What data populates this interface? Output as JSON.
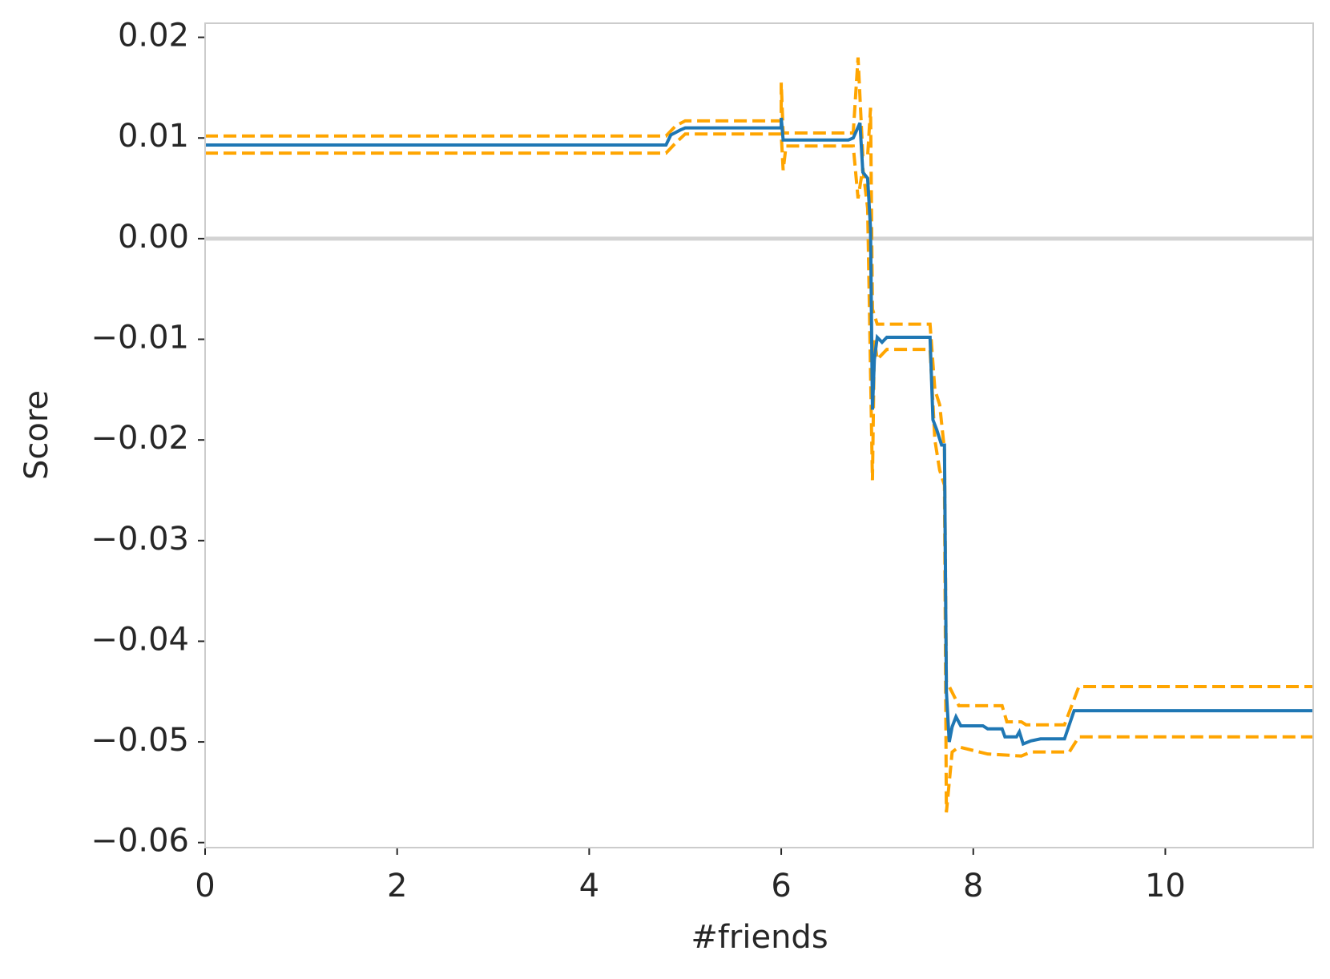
{
  "chart_data": {
    "type": "line",
    "x_label": "#friends",
    "y_label": "Score",
    "xlim": [
      0,
      11.54
    ],
    "ylim": [
      -0.0605,
      0.0214
    ],
    "xticks": [
      0,
      2,
      4,
      6,
      8,
      10
    ],
    "yticks": [
      {
        "value": -0.06,
        "label": "−0.06"
      },
      {
        "value": -0.05,
        "label": "−0.05"
      },
      {
        "value": -0.04,
        "label": "−0.04"
      },
      {
        "value": -0.03,
        "label": "−0.03"
      },
      {
        "value": -0.02,
        "label": "−0.02"
      },
      {
        "value": -0.01,
        "label": "−0.01"
      },
      {
        "value": 0,
        "label": "0.00"
      },
      0.01,
      0.02
    ],
    "hline": 0,
    "hline_color": "#d3d3d3",
    "series": [
      {
        "color": "#ffa500",
        "dashed": true,
        "x": [
          0,
          4.8,
          4.9,
          5.0,
          6.0,
          6.0,
          6.02,
          6.75,
          6.8,
          6.85,
          6.9,
          6.93,
          6.95,
          7.0,
          7.55,
          7.6,
          7.65,
          7.7,
          7.72,
          7.75,
          7.85,
          8.3,
          8.35,
          8.5,
          8.55,
          8.95,
          9.1,
          11.54
        ],
        "values": [
          0.0102,
          0.0102,
          0.0112,
          0.0117,
          0.0117,
          0.0155,
          0.0105,
          0.0105,
          0.018,
          0.0082,
          0.0082,
          0.013,
          -0.007,
          -0.0085,
          -0.0085,
          -0.015,
          -0.0165,
          -0.021,
          -0.044,
          -0.0445,
          -0.0464,
          -0.0464,
          -0.048,
          -0.048,
          -0.0483,
          -0.0483,
          -0.0445,
          -0.0445
        ]
      },
      {
        "color": "#ffa500",
        "dashed": true,
        "x": [
          0,
          4.8,
          4.9,
          5.0,
          6.0,
          6.02,
          6.05,
          6.75,
          6.8,
          6.85,
          6.9,
          6.95,
          6.97,
          7.0,
          7.05,
          7.1,
          7.55,
          7.6,
          7.65,
          7.7,
          7.72,
          7.78,
          7.85,
          8.15,
          8.5,
          8.6,
          9.0,
          9.1,
          11.54
        ],
        "values": [
          0.0085,
          0.0085,
          0.0095,
          0.0104,
          0.0104,
          0.0068,
          0.0092,
          0.0092,
          0.004,
          0.007,
          0.003,
          -0.024,
          -0.01,
          -0.012,
          -0.0115,
          -0.011,
          -0.011,
          -0.02,
          -0.023,
          -0.0245,
          -0.057,
          -0.051,
          -0.0505,
          -0.0512,
          -0.0514,
          -0.051,
          -0.051,
          -0.0495,
          -0.0495
        ]
      },
      {
        "color": "#1f77b4",
        "dashed": false,
        "x": [
          0,
          4.8,
          4.85,
          4.95,
          5.0,
          6.0,
          6.0,
          6.02,
          6.7,
          6.75,
          6.82,
          6.85,
          6.9,
          6.93,
          6.95,
          6.97,
          7.0,
          7.05,
          7.1,
          7.55,
          7.58,
          7.62,
          7.67,
          7.7,
          7.72,
          7.75,
          7.78,
          7.82,
          7.87,
          8.1,
          8.15,
          8.3,
          8.33,
          8.45,
          8.48,
          8.52,
          8.6,
          8.7,
          8.95,
          9.05,
          11.54
        ],
        "values": [
          0.0093,
          0.0093,
          0.0103,
          0.0108,
          0.011,
          0.011,
          0.012,
          0.0098,
          0.0098,
          0.01,
          0.0115,
          0.0066,
          0.006,
          0.001,
          -0.017,
          -0.012,
          -0.0098,
          -0.0103,
          -0.0098,
          -0.0098,
          -0.018,
          -0.019,
          -0.0205,
          -0.0205,
          -0.045,
          -0.05,
          -0.0485,
          -0.0475,
          -0.0484,
          -0.0484,
          -0.0487,
          -0.0487,
          -0.0495,
          -0.0495,
          -0.049,
          -0.0502,
          -0.0499,
          -0.0497,
          -0.0497,
          -0.0469,
          -0.0469
        ]
      }
    ]
  }
}
